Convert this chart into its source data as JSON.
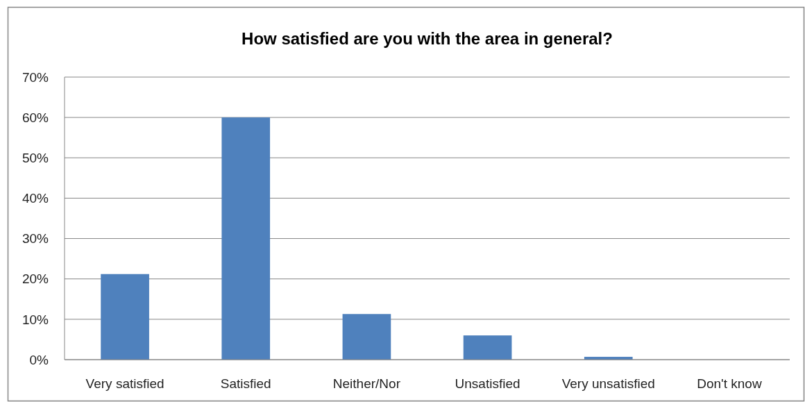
{
  "chart_data": {
    "type": "bar",
    "title": "How satisfied are you with the area in general?",
    "categories": [
      "Very satisfied",
      "Satisfied",
      "Neither/Nor",
      "Unsatisfied",
      "Very unsatisfied",
      "Don't know"
    ],
    "values": [
      21.2,
      60,
      11.3,
      6,
      0.7,
      0
    ],
    "color": "#4f81bd",
    "ylim": [
      0,
      70
    ],
    "yticks": [
      {
        "value": 0,
        "label": "0%"
      },
      {
        "value": 10,
        "label": "10%"
      },
      {
        "value": 20,
        "label": "20%"
      },
      {
        "value": 30,
        "label": "30%"
      },
      {
        "value": 40,
        "label": "40%"
      },
      {
        "value": 50,
        "label": "50%"
      },
      {
        "value": 60,
        "label": "60%"
      },
      {
        "value": 70,
        "label": "70%"
      }
    ],
    "grid": "y"
  }
}
